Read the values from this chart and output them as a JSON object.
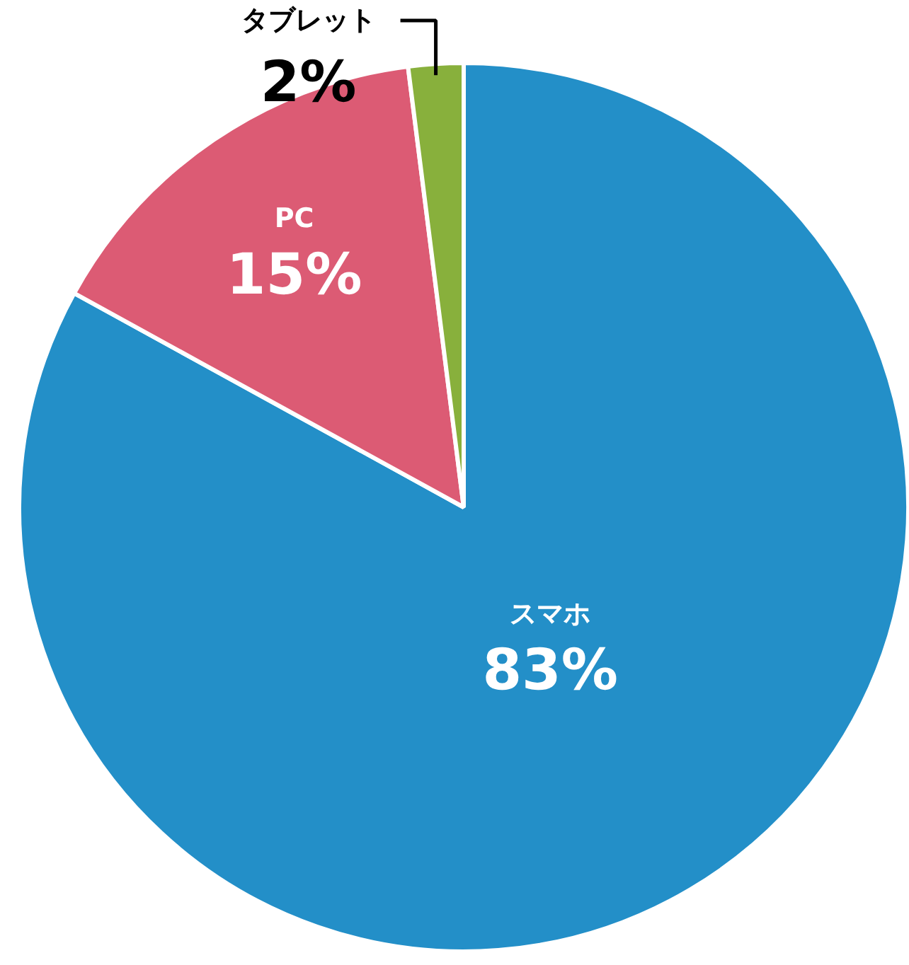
{
  "chart_data": {
    "type": "pie",
    "categories": [
      "スマホ",
      "PC",
      "タブレット"
    ],
    "values": [
      83,
      15,
      2
    ],
    "colors": [
      "#238fc8",
      "#dc5b74",
      "#88b03c"
    ],
    "value_labels": [
      "83%",
      "15%",
      "2%"
    ]
  }
}
